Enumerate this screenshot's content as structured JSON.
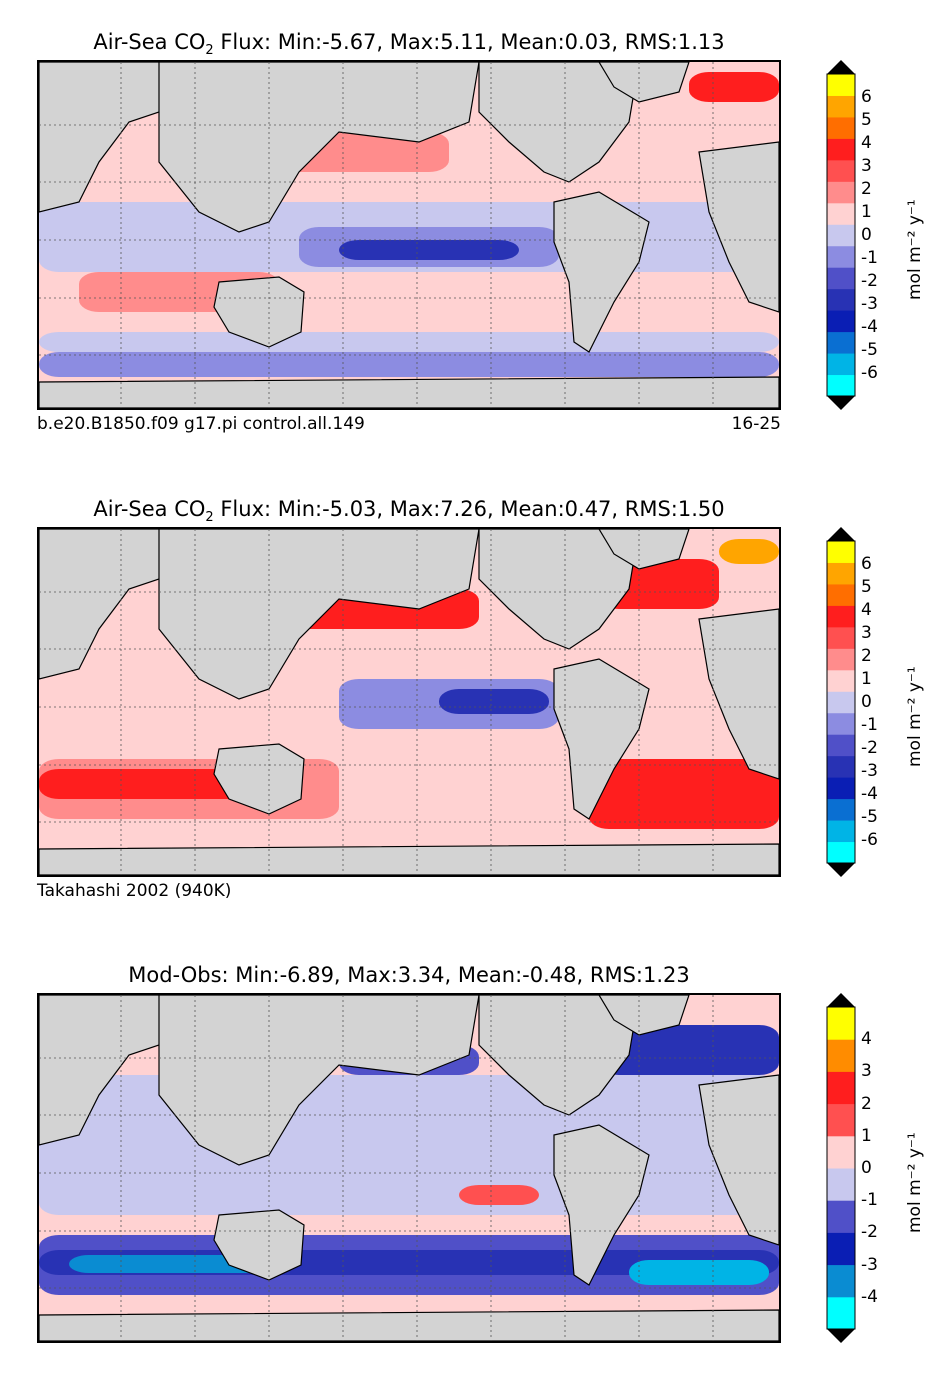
{
  "colors": {
    "land": "#d3d3d3",
    "gridline": "#555555",
    "scale7": [
      "#00ffff",
      "#00b4e6",
      "#0a6fd2",
      "#0a1eb4",
      "#2832b4",
      "#5050c8",
      "#8c8ce1",
      "#c8c8ee",
      "#ffd2d2",
      "#ff8c8c",
      "#ff5050",
      "#ff1e1e",
      "#ff6e00",
      "#ffa500",
      "#ffff00"
    ],
    "scale5": [
      "#00ffff",
      "#0a8cd2",
      "#0a1eb4",
      "#5050c8",
      "#c8c8ee",
      "#ffd2d2",
      "#ff5050",
      "#ff1e1e",
      "#ff8c00",
      "#ffff00"
    ]
  },
  "chart_data": [
    {
      "type": "contour_map",
      "title_prefix": "Air-Sea CO",
      "title_sub": "2",
      "title_suffix": "  Flux: Min:-5.67, Max:5.11, Mean:0.03, RMS:1.13",
      "stats": {
        "min": -5.67,
        "max": 5.11,
        "mean": 0.03,
        "rms": 1.13
      },
      "left_label": "b.e20.B1850.f09 g17.pi control.all.149",
      "right_label": "16-25",
      "colorbar": {
        "ticks": [
          "6",
          "5",
          "4",
          "3",
          "2",
          "1",
          "0",
          "-1",
          "-2",
          "-3",
          "-4",
          "-5",
          "-6"
        ],
        "range": [
          -7,
          7
        ],
        "palette": "scale7",
        "extend": "both",
        "unit_label": "mol m⁻² y⁻¹"
      }
    },
    {
      "type": "contour_map",
      "title_prefix": "Air-Sea CO",
      "title_sub": "2",
      "title_suffix": "  Flux: Min:-5.03, Max:7.26, Mean:0.47, RMS:1.50",
      "stats": {
        "min": -5.03,
        "max": 7.26,
        "mean": 0.47,
        "rms": 1.5
      },
      "left_label": "Takahashi 2002 (940K)",
      "right_label": "",
      "colorbar": {
        "ticks": [
          "6",
          "5",
          "4",
          "3",
          "2",
          "1",
          "0",
          "-1",
          "-2",
          "-3",
          "-4",
          "-5",
          "-6"
        ],
        "range": [
          -7,
          7
        ],
        "palette": "scale7",
        "extend": "both",
        "unit_label": "mol m⁻² y⁻¹"
      }
    },
    {
      "type": "contour_map",
      "title_prefix": "Mod-Obs: Min:-6.89, Max:3.34, Mean:-0.48, RMS:1.23",
      "title_sub": "",
      "title_suffix": "",
      "stats": {
        "min": -6.89,
        "max": 3.34,
        "mean": -0.48,
        "rms": 1.23
      },
      "left_label": "",
      "right_label": "",
      "colorbar": {
        "ticks": [
          "4",
          "3",
          "2",
          "1",
          "0",
          "-1",
          "-2",
          "-3",
          "-4"
        ],
        "range": [
          -5,
          5
        ],
        "palette": "scale5",
        "extend": "both",
        "unit_label": "mol m⁻² y⁻¹"
      }
    }
  ]
}
